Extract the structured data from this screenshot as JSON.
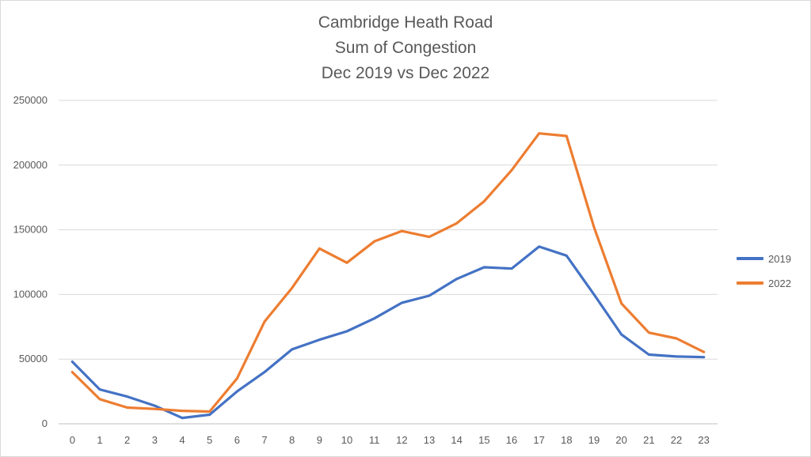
{
  "chart_data": {
    "type": "line",
    "title_lines": [
      "Cambridge Heath Road",
      "Sum of Congestion",
      "Dec 2019 vs Dec 2022"
    ],
    "categories": [
      "0",
      "1",
      "2",
      "3",
      "4",
      "5",
      "6",
      "7",
      "8",
      "9",
      "10",
      "11",
      "12",
      "13",
      "14",
      "15",
      "16",
      "17",
      "18",
      "19",
      "20",
      "21",
      "22",
      "23"
    ],
    "y_ticks": [
      "0",
      "50000",
      "100000",
      "150000",
      "200000",
      "250000"
    ],
    "ylim": [
      0,
      250000
    ],
    "grid": true,
    "legend_position": "right",
    "series": [
      {
        "name": "2019",
        "color": "#4472c4",
        "values": [
          48000,
          26500,
          21000,
          14000,
          4500,
          7000,
          25000,
          40000,
          57500,
          65000,
          71500,
          81500,
          93500,
          99000,
          112000,
          121000,
          120000,
          137000,
          130000,
          100000,
          69000,
          53500,
          52000,
          51500
        ]
      },
      {
        "name": "2022",
        "color": "#ed7d31",
        "values": [
          40000,
          19000,
          12500,
          11500,
          10000,
          9500,
          35000,
          79000,
          105000,
          135500,
          124500,
          141000,
          149000,
          144500,
          155000,
          172000,
          196000,
          224500,
          222500,
          152000,
          93000,
          70500,
          66000,
          55500
        ]
      }
    ]
  }
}
